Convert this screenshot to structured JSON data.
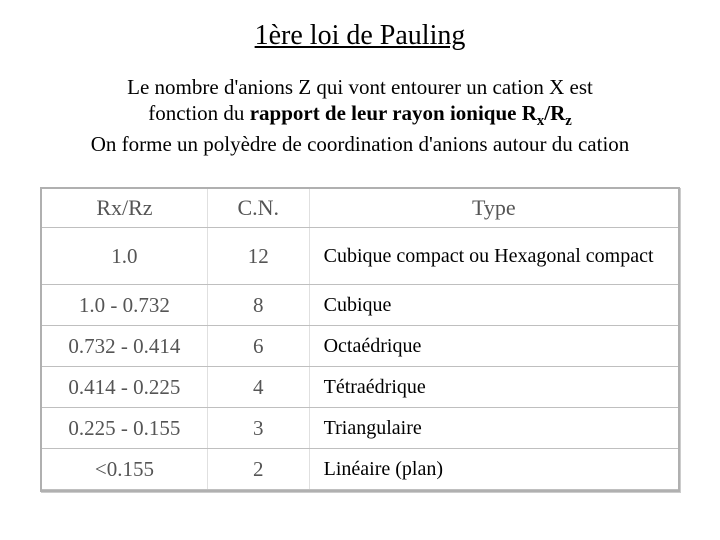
{
  "title": "1ère loi de Pauling",
  "desc_line1_pre": "Le nombre d'anions Z qui vont entourer un cation X est",
  "desc_line2_pre": "fonction du ",
  "desc_line2_bold_a": "rapport de leur rayon ionique R",
  "desc_line2_sub_x": "x",
  "desc_line2_bold_b": "/R",
  "desc_line2_sub_z": "z",
  "desc_line3": "On forme un polyèdre de coordination d'anions autour du cation",
  "table": {
    "headers": {
      "c1": "Rx/Rz",
      "c2": "C.N.",
      "c3": "Type"
    },
    "rows": [
      {
        "rxrz": "1.0",
        "cn": "12",
        "type": "Cubique compact ou Hexagonal compact",
        "tall": true
      },
      {
        "rxrz": "1.0 - 0.732",
        "cn": "8",
        "type": "Cubique"
      },
      {
        "rxrz": "0.732 - 0.414",
        "cn": "6",
        "type": "Octaédrique"
      },
      {
        "rxrz": "0.414 - 0.225",
        "cn": "4",
        "type": "Tétraédrique"
      },
      {
        "rxrz": "0.225 - 0.155",
        "cn": "3",
        "type": "Triangulaire"
      },
      {
        "rxrz": "<0.155",
        "cn": "2",
        "type": "Linéaire (plan)"
      }
    ]
  }
}
